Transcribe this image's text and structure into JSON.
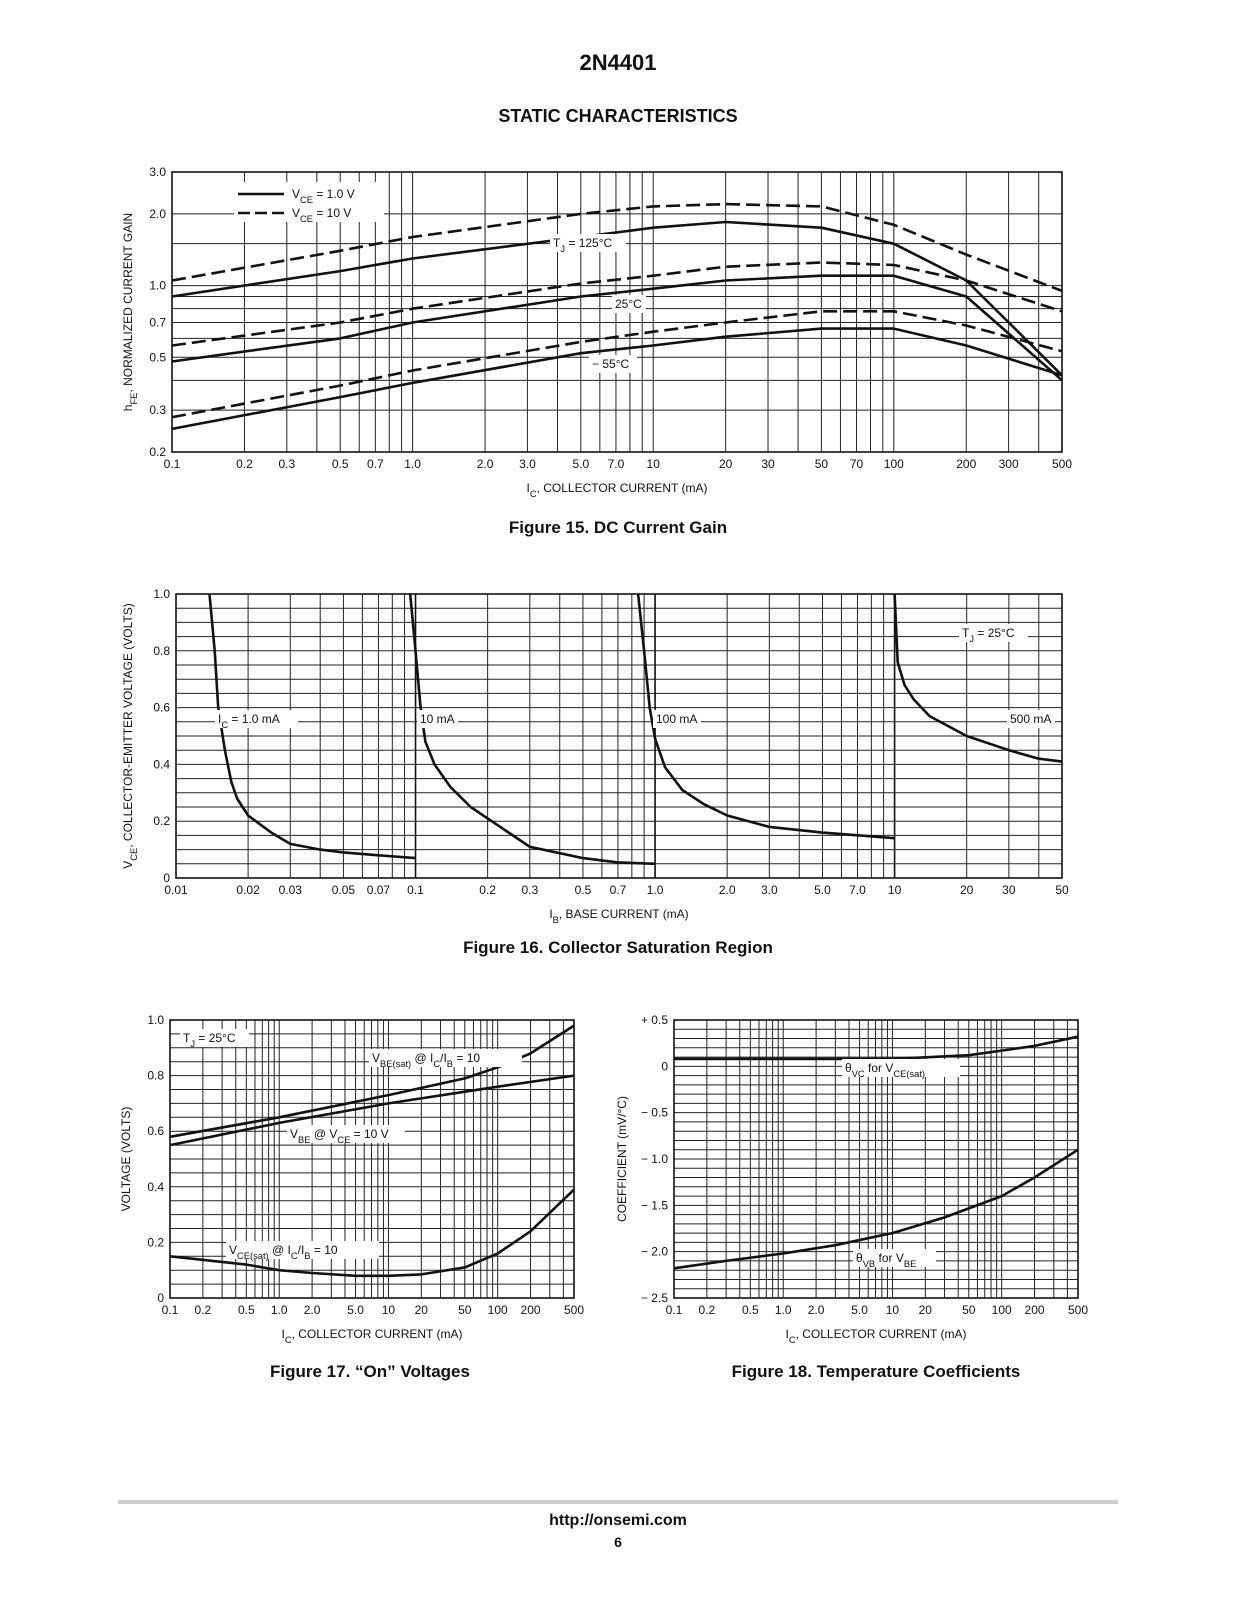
{
  "header": {
    "part_number": "2N4401",
    "section_title": "STATIC CHARACTERISTICS"
  },
  "footer": {
    "url": "http://onsemi.com",
    "page_number": "6"
  },
  "chart_data": [
    {
      "id": "fig15",
      "type": "line",
      "caption": "Figure 15. DC Current Gain",
      "xlabel": "I_C, COLLECTOR CURRENT (mA)",
      "ylabel": "h_FE, NORMALIZED CURRENT GAIN",
      "xscale": "log",
      "yscale": "log",
      "xlim": [
        0.1,
        500
      ],
      "ylim": [
        0.2,
        3.0
      ],
      "xticks": [
        0.1,
        0.2,
        0.3,
        0.5,
        0.7,
        1.0,
        2.0,
        3.0,
        5.0,
        7.0,
        10,
        20,
        30,
        50,
        70,
        100,
        200,
        300,
        500
      ],
      "xticklabels": [
        "0.1",
        "0.2",
        "0.3",
        "0.5",
        "0.7",
        "1.0",
        "2.0",
        "3.0",
        "5.0",
        "7.0",
        "10",
        "20",
        "30",
        "50",
        "70",
        "100",
        "200",
        "300",
        "500"
      ],
      "yticks": [
        0.2,
        0.3,
        0.5,
        0.7,
        1.0,
        2.0,
        3.0
      ],
      "yticklabels": [
        "0.2",
        "0.3",
        "0.5",
        "0.7",
        "1.0",
        "2.0",
        "3.0"
      ],
      "grid": true,
      "legend": [
        {
          "label": "V_CE = 1.0 V",
          "style": "solid"
        },
        {
          "label": "V_CE = 10 V",
          "style": "dashed"
        }
      ],
      "annotations": [
        "T_J = 125°C",
        "25°C",
        "− 55°C"
      ],
      "series": [
        {
          "style": "solid",
          "x": [
            0.1,
            0.5,
            1,
            5,
            10,
            20,
            50,
            100,
            200,
            500
          ],
          "y": [
            0.9,
            1.15,
            1.3,
            1.6,
            1.75,
            1.85,
            1.75,
            1.5,
            1.05,
            0.42
          ]
        },
        {
          "style": "dashed",
          "x": [
            0.1,
            0.5,
            1,
            5,
            10,
            20,
            50,
            100,
            200,
            500
          ],
          "y": [
            1.05,
            1.4,
            1.6,
            2.0,
            2.15,
            2.2,
            2.15,
            1.8,
            1.35,
            0.95
          ]
        },
        {
          "style": "solid",
          "x": [
            0.1,
            0.5,
            1,
            5,
            10,
            20,
            50,
            100,
            200,
            500
          ],
          "y": [
            0.48,
            0.6,
            0.7,
            0.9,
            0.97,
            1.05,
            1.1,
            1.1,
            0.9,
            0.4
          ]
        },
        {
          "style": "dashed",
          "x": [
            0.1,
            0.5,
            1,
            5,
            10,
            20,
            50,
            100,
            200,
            500
          ],
          "y": [
            0.56,
            0.7,
            0.8,
            1.02,
            1.1,
            1.2,
            1.25,
            1.22,
            1.05,
            0.78
          ]
        },
        {
          "style": "solid",
          "x": [
            0.1,
            0.5,
            1,
            5,
            10,
            20,
            50,
            100,
            200,
            500
          ],
          "y": [
            0.25,
            0.34,
            0.39,
            0.52,
            0.56,
            0.61,
            0.66,
            0.66,
            0.56,
            0.42
          ]
        },
        {
          "style": "dashed",
          "x": [
            0.1,
            0.5,
            1,
            5,
            10,
            20,
            50,
            100,
            200,
            500
          ],
          "y": [
            0.28,
            0.38,
            0.44,
            0.58,
            0.64,
            0.7,
            0.78,
            0.78,
            0.68,
            0.53
          ]
        }
      ]
    },
    {
      "id": "fig16",
      "type": "line",
      "caption": "Figure 16. Collector Saturation Region",
      "xlabel": "I_B, BASE CURRENT (mA)",
      "ylabel": "V_CE, COLLECTOR-EMITTER VOLTAGE (VOLTS)",
      "xscale": "log",
      "yscale": "linear",
      "xlim": [
        0.01,
        50
      ],
      "ylim": [
        0,
        1.0
      ],
      "xticks": [
        0.01,
        0.02,
        0.03,
        0.05,
        0.07,
        0.1,
        0.2,
        0.3,
        0.5,
        0.7,
        1.0,
        2.0,
        3.0,
        5.0,
        7.0,
        10,
        20,
        30,
        50
      ],
      "xticklabels": [
        "0.01",
        "0.02",
        "0.03",
        "0.05",
        "0.07",
        "0.1",
        "0.2",
        "0.3",
        "0.5",
        "0.7",
        "1.0",
        "2.0",
        "3.0",
        "5.0",
        "7.0",
        "10",
        "20",
        "30",
        "50"
      ],
      "yticks": [
        0,
        0.2,
        0.4,
        0.6,
        0.8,
        1.0
      ],
      "yticklabels": [
        "0",
        "0.2",
        "0.4",
        "0.6",
        "0.8",
        "1.0"
      ],
      "grid": true,
      "annotations": [
        "T_J = 25°C",
        "I_C = 1.0 mA",
        "10 mA",
        "100 mA",
        "500 mA"
      ],
      "series": [
        {
          "name": "I_C = 1.0 mA",
          "x": [
            0.0138,
            0.0145,
            0.015,
            0.016,
            0.017,
            0.018,
            0.02,
            0.025,
            0.03,
            0.04,
            0.05,
            0.07,
            0.1
          ],
          "y": [
            1.0,
            0.8,
            0.6,
            0.45,
            0.34,
            0.28,
            0.22,
            0.16,
            0.12,
            0.1,
            0.09,
            0.08,
            0.07
          ]
        },
        {
          "name": "10 mA",
          "x": [
            0.095,
            0.1,
            0.105,
            0.11,
            0.12,
            0.14,
            0.17,
            0.2,
            0.3,
            0.5,
            0.7,
            1.0
          ],
          "y": [
            1.0,
            0.8,
            0.6,
            0.48,
            0.4,
            0.32,
            0.25,
            0.21,
            0.11,
            0.07,
            0.055,
            0.05
          ]
        },
        {
          "name": "100 mA",
          "x": [
            0.85,
            0.9,
            0.95,
            1.0,
            1.1,
            1.3,
            1.6,
            2.0,
            3.0,
            5.0,
            10
          ],
          "y": [
            1.0,
            0.8,
            0.6,
            0.49,
            0.39,
            0.31,
            0.26,
            0.22,
            0.18,
            0.16,
            0.14
          ]
        },
        {
          "name": "500 mA",
          "x": [
            10,
            10.3,
            11,
            12,
            14,
            20,
            30,
            40,
            50
          ],
          "y": [
            1.0,
            0.76,
            0.68,
            0.63,
            0.57,
            0.5,
            0.45,
            0.42,
            0.41
          ]
        }
      ]
    },
    {
      "id": "fig17",
      "type": "line",
      "caption": "Figure 17. “On” Voltages",
      "xlabel": "I_C, COLLECTOR CURRENT (mA)",
      "ylabel": "VOLTAGE (VOLTS)",
      "xscale": "log",
      "yscale": "linear",
      "xlim": [
        0.1,
        500
      ],
      "ylim": [
        0,
        1.0
      ],
      "xticks": [
        0.1,
        0.2,
        0.5,
        1.0,
        2.0,
        5.0,
        10,
        20,
        50,
        100,
        200,
        500
      ],
      "xticklabels": [
        "0.1",
        "0.2",
        "0.5",
        "1.0",
        "2.0",
        "5.0",
        "10",
        "20",
        "50",
        "100",
        "200",
        "500"
      ],
      "yticks": [
        0,
        0.2,
        0.4,
        0.6,
        0.8,
        1.0
      ],
      "yticklabels": [
        "0",
        "0.2",
        "0.4",
        "0.6",
        "0.8",
        "1.0"
      ],
      "grid": true,
      "annotations": [
        "T_J = 25°C",
        "V_BE(sat) @ I_C/I_B = 10",
        "V_BE @ V_CE = 10 V",
        "V_CE(sat) @ I_C/I_B = 10"
      ],
      "series": [
        {
          "name": "V_BE(sat) @ I_C/I_B = 10",
          "x": [
            0.1,
            1,
            10,
            50,
            100,
            200,
            500
          ],
          "y": [
            0.58,
            0.65,
            0.73,
            0.79,
            0.83,
            0.88,
            0.98
          ]
        },
        {
          "name": "V_BE @ V_CE = 10 V",
          "x": [
            0.1,
            1,
            10,
            100,
            500
          ],
          "y": [
            0.55,
            0.63,
            0.7,
            0.76,
            0.8
          ]
        },
        {
          "name": "V_CE(sat) @ I_C/I_B = 10",
          "x": [
            0.1,
            0.5,
            1,
            2,
            5,
            10,
            20,
            50,
            100,
            200,
            500
          ],
          "y": [
            0.15,
            0.12,
            0.1,
            0.09,
            0.08,
            0.08,
            0.085,
            0.11,
            0.16,
            0.24,
            0.39
          ]
        }
      ]
    },
    {
      "id": "fig18",
      "type": "line",
      "caption": "Figure 18. Temperature Coefficients",
      "xlabel": "I_C, COLLECTOR CURRENT (mA)",
      "ylabel": "COEFFICIENT (mV/°C)",
      "xscale": "log",
      "yscale": "linear",
      "xlim": [
        0.1,
        500
      ],
      "ylim": [
        -2.5,
        0.5
      ],
      "xticks": [
        0.1,
        0.2,
        0.5,
        1.0,
        2.0,
        5.0,
        10,
        20,
        50,
        100,
        200,
        500
      ],
      "xticklabels": [
        "0.1",
        "0.2",
        "0.5",
        "1.0",
        "2.0",
        "5.0",
        "10",
        "20",
        "50",
        "100",
        "200",
        "500"
      ],
      "yticks": [
        0.5,
        0,
        -0.5,
        -1.0,
        -1.5,
        -2.0,
        -2.5
      ],
      "yticklabels": [
        "+ 0.5",
        "0",
        "− 0.5",
        "− 1.0",
        "− 1.5",
        "− 2.0",
        "− 2.5"
      ],
      "grid": true,
      "annotations": [
        "θ_VC for V_CE(sat)",
        "θ_VB for V_BE"
      ],
      "series": [
        {
          "name": "θVC for VCE(sat)",
          "x": [
            0.1,
            1,
            10,
            50,
            100,
            200,
            500
          ],
          "y": [
            0.08,
            0.08,
            0.08,
            0.12,
            0.17,
            0.22,
            0.32
          ]
        },
        {
          "name": "θVB for VBE",
          "x": [
            0.1,
            0.3,
            1,
            3,
            10,
            30,
            100,
            200,
            500
          ],
          "y": [
            -2.18,
            -2.1,
            -2.02,
            -1.93,
            -1.8,
            -1.63,
            -1.4,
            -1.2,
            -0.9
          ]
        }
      ]
    }
  ]
}
